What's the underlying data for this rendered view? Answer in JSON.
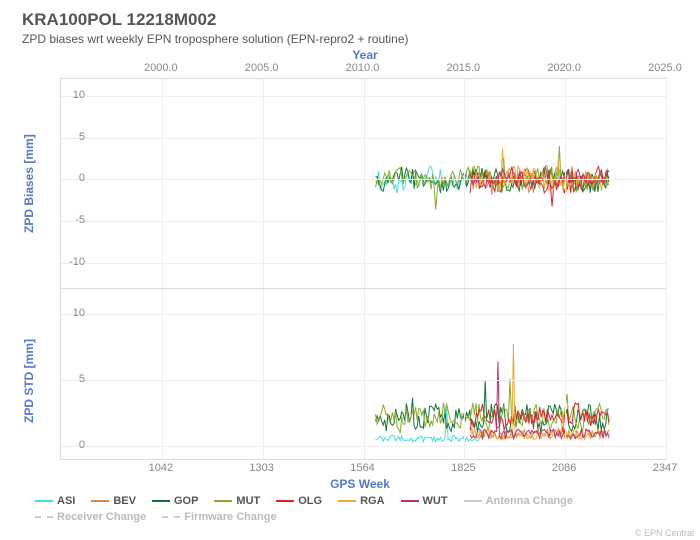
{
  "title": "KRA100POL 12218M002",
  "subtitle": "ZPD biases wrt weekly EPN troposphere solution (EPN-repro2 + routine)",
  "top_axis": {
    "label": "Year",
    "ticks": [
      2000.0,
      2005.0,
      2010.0,
      2015.0,
      2020.0,
      2025.0
    ]
  },
  "bottom_axis": {
    "label": "GPS Week",
    "min": 781,
    "max": 2347,
    "ticks": [
      1042,
      1303,
      1564,
      1825,
      2086,
      2347
    ]
  },
  "panels": [
    {
      "name": "biases",
      "ylabel": "ZPD Biases [mm]",
      "min": -13,
      "max": 12,
      "ticks": [
        -10,
        -5,
        0,
        5,
        10
      ]
    },
    {
      "name": "std",
      "ylabel": "ZPD STD [mm]",
      "min": -1,
      "max": 12,
      "ticks": [
        0,
        5,
        10
      ]
    }
  ],
  "series": [
    {
      "code": "ASI",
      "color": "#44dddd"
    },
    {
      "code": "BEV",
      "color": "#dd8844"
    },
    {
      "code": "GOP",
      "color": "#117733"
    },
    {
      "code": "MUT",
      "color": "#88aa33"
    },
    {
      "code": "OLG",
      "color": "#dd2222"
    },
    {
      "code": "RGA",
      "color": "#eeaa33"
    },
    {
      "code": "WUT",
      "color": "#bb3366"
    }
  ],
  "legend_extra": [
    {
      "label": "Antenna Change",
      "color": "#cccccc",
      "style": "solid"
    },
    {
      "label": "Receiver Change",
      "color": "#cccccc",
      "style": "dashed"
    },
    {
      "label": "Firmware Change",
      "color": "#cccccc",
      "style": "dashed"
    }
  ],
  "data_start_week": 1595,
  "data_end_week": 2200,
  "credit": "© EPN Central"
}
